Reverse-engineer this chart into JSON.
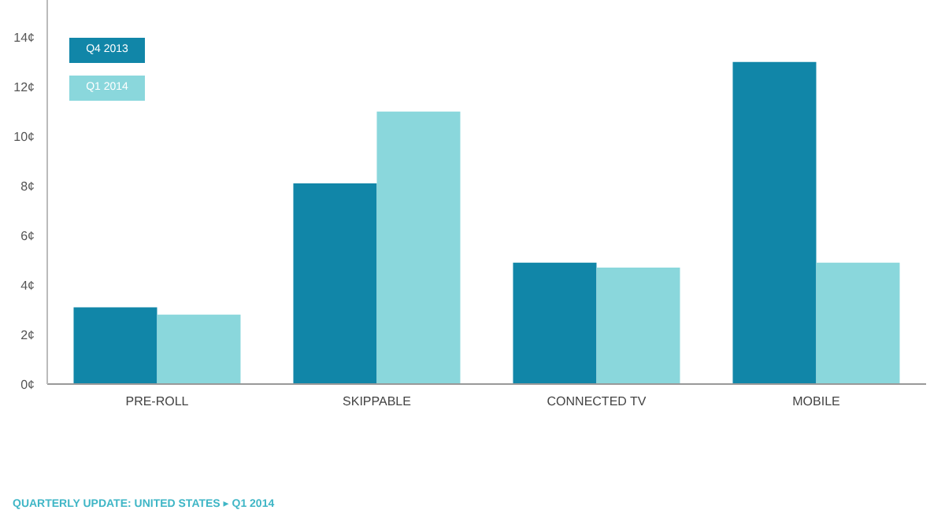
{
  "chart_data": {
    "type": "bar",
    "categories": [
      "PRE-ROLL",
      "SKIPPABLE",
      "CONNECTED TV",
      "MOBILE"
    ],
    "series": [
      {
        "name": "Q4 2013",
        "color": "#1186a8",
        "values": [
          3.1,
          8.1,
          4.9,
          13.0
        ]
      },
      {
        "name": "Q1 2014",
        "color": "#8ad7dc",
        "values": [
          2.8,
          11.0,
          4.7,
          4.9
        ]
      }
    ],
    "ylim": [
      0,
      15.5
    ],
    "yticks": [
      {
        "value": 0,
        "label": "0¢"
      },
      {
        "value": 2,
        "label": "2¢"
      },
      {
        "value": 4,
        "label": "4¢"
      },
      {
        "value": 6,
        "label": "6¢"
      },
      {
        "value": 8,
        "label": "8¢"
      },
      {
        "value": 10,
        "label": "10¢"
      },
      {
        "value": 12,
        "label": "12¢"
      },
      {
        "value": 14,
        "label": "14¢"
      }
    ],
    "grid": false,
    "legend": "top left",
    "annotations": [
      "QUARTERLY UPDATE: UNITED STATES ▸ Q1 2014"
    ]
  }
}
